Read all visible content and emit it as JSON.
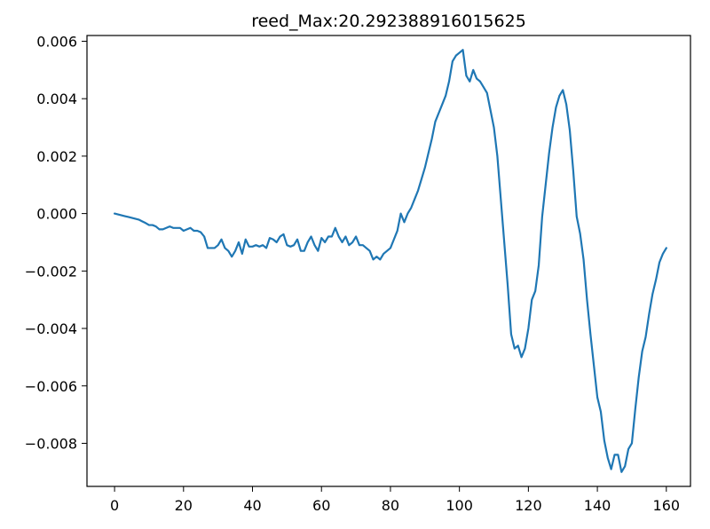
{
  "chart_data": {
    "type": "line",
    "title": "reed_Max:20.292388916015625",
    "xlabel": "",
    "ylabel": "",
    "xlim": [
      -8,
      167
    ],
    "ylim": [
      -0.0095,
      0.0062
    ],
    "grid": false,
    "line_color": "#1f77b4",
    "x_ticks": [
      0,
      20,
      40,
      60,
      80,
      100,
      120,
      140,
      160
    ],
    "x_tick_labels": [
      "0",
      "20",
      "40",
      "60",
      "80",
      "100",
      "120",
      "140",
      "160"
    ],
    "y_ticks": [
      -0.008,
      -0.006,
      -0.004,
      -0.002,
      0.0,
      0.002,
      0.004,
      0.006
    ],
    "y_tick_labels": [
      "−0.008",
      "−0.006",
      "−0.004",
      "−0.002",
      "0.000",
      "0.002",
      "0.004",
      "0.006"
    ],
    "series": [
      {
        "values": [
          0.0,
          -3e-05,
          -6e-05,
          -9e-05,
          -0.00012,
          -0.00015,
          -0.00018,
          -0.00021,
          -0.00027,
          -0.00033,
          -0.0004,
          -0.0004,
          -0.00045,
          -0.00055,
          -0.00055,
          -0.0005,
          -0.00045,
          -0.0005,
          -0.0005,
          -0.0005,
          -0.0006,
          -0.00055,
          -0.0005,
          -0.0006,
          -0.0006,
          -0.00065,
          -0.0008,
          -0.0012,
          -0.0012,
          -0.0012,
          -0.0011,
          -0.0009,
          -0.0012,
          -0.0013,
          -0.0015,
          -0.0013,
          -0.001,
          -0.0014,
          -0.0009,
          -0.00115,
          -0.00115,
          -0.0011,
          -0.00115,
          -0.0011,
          -0.0012,
          -0.00085,
          -0.0009,
          -0.001,
          -0.0008,
          -0.00072,
          -0.0011,
          -0.00115,
          -0.0011,
          -0.0009,
          -0.0013,
          -0.0013,
          -0.001,
          -0.0008,
          -0.0011,
          -0.0013,
          -0.00085,
          -0.001,
          -0.0008,
          -0.0008,
          -0.0005,
          -0.0008,
          -0.001,
          -0.0008,
          -0.0011,
          -0.001,
          -0.0008,
          -0.0011,
          -0.0011,
          -0.0012,
          -0.0013,
          -0.0016,
          -0.0015,
          -0.0016,
          -0.0014,
          -0.0013,
          -0.0012,
          -0.0009,
          -0.0006,
          0.0,
          -0.0003,
          0.0,
          0.0002,
          0.0005,
          0.0008,
          0.0012,
          0.0016,
          0.0021,
          0.0026,
          0.0032,
          0.0035,
          0.0038,
          0.0041,
          0.0046,
          0.0053,
          0.0055,
          0.0056,
          0.0057,
          0.0048,
          0.0046,
          0.005,
          0.0047,
          0.0046,
          0.0044,
          0.0042,
          0.0036,
          0.003,
          0.002,
          0.0005,
          -0.001,
          -0.0025,
          -0.0042,
          -0.0047,
          -0.0046,
          -0.005,
          -0.0047,
          -0.004,
          -0.003,
          -0.0027,
          -0.0018,
          -0.0001,
          0.001,
          0.0021,
          0.003,
          0.0037,
          0.0041,
          0.0043,
          0.0038,
          0.0029,
          0.0015,
          -0.0001,
          -0.0007,
          -0.0016,
          -0.003,
          -0.0042,
          -0.0053,
          -0.0064,
          -0.0069,
          -0.0079,
          -0.0085,
          -0.0089,
          -0.0084,
          -0.0084,
          -0.009,
          -0.0088,
          -0.0082,
          -0.008,
          -0.0068,
          -0.0057,
          -0.0048,
          -0.0043,
          -0.0035,
          -0.0028,
          -0.0023,
          -0.0017,
          -0.0014,
          -0.0012
        ]
      }
    ]
  }
}
